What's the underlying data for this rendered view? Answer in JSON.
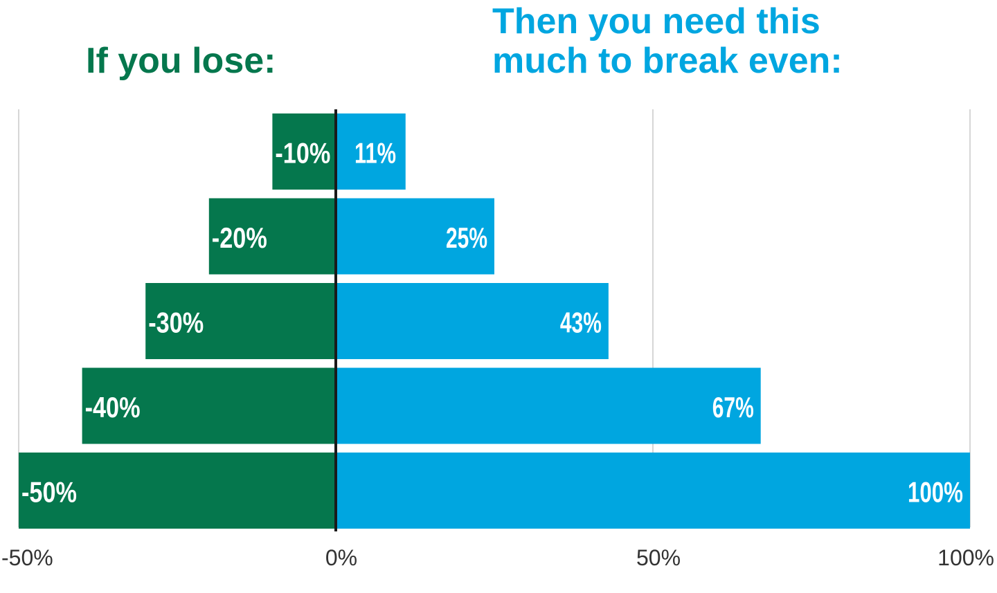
{
  "chart_data": {
    "type": "bar",
    "orientation": "horizontal-diverging",
    "left_heading": "If you lose:",
    "right_heading_lines": [
      "Then you need this",
      "much to break even:"
    ],
    "series": [
      {
        "values": [
          -10,
          -20,
          -30,
          -40,
          -50
        ],
        "labels": [
          "-10%",
          "-20%",
          "-30%",
          "-40%",
          "-50%"
        ],
        "color": "#05774d"
      },
      {
        "values": [
          11,
          25,
          43,
          67,
          100
        ],
        "labels": [
          "11%",
          "25%",
          "43%",
          "67%",
          "100%"
        ],
        "color": "#00a6e0"
      }
    ],
    "xlim": [
      -50,
      100
    ],
    "x_ticks": [
      -50,
      0,
      50,
      100
    ],
    "x_tick_labels": [
      "-50%",
      "0%",
      "50%",
      "100%"
    ],
    "grid": "vertical",
    "zero_line_color": "#1a1a1a",
    "grid_color": "#c8c8c8",
    "tick_label_color": "#333333"
  }
}
